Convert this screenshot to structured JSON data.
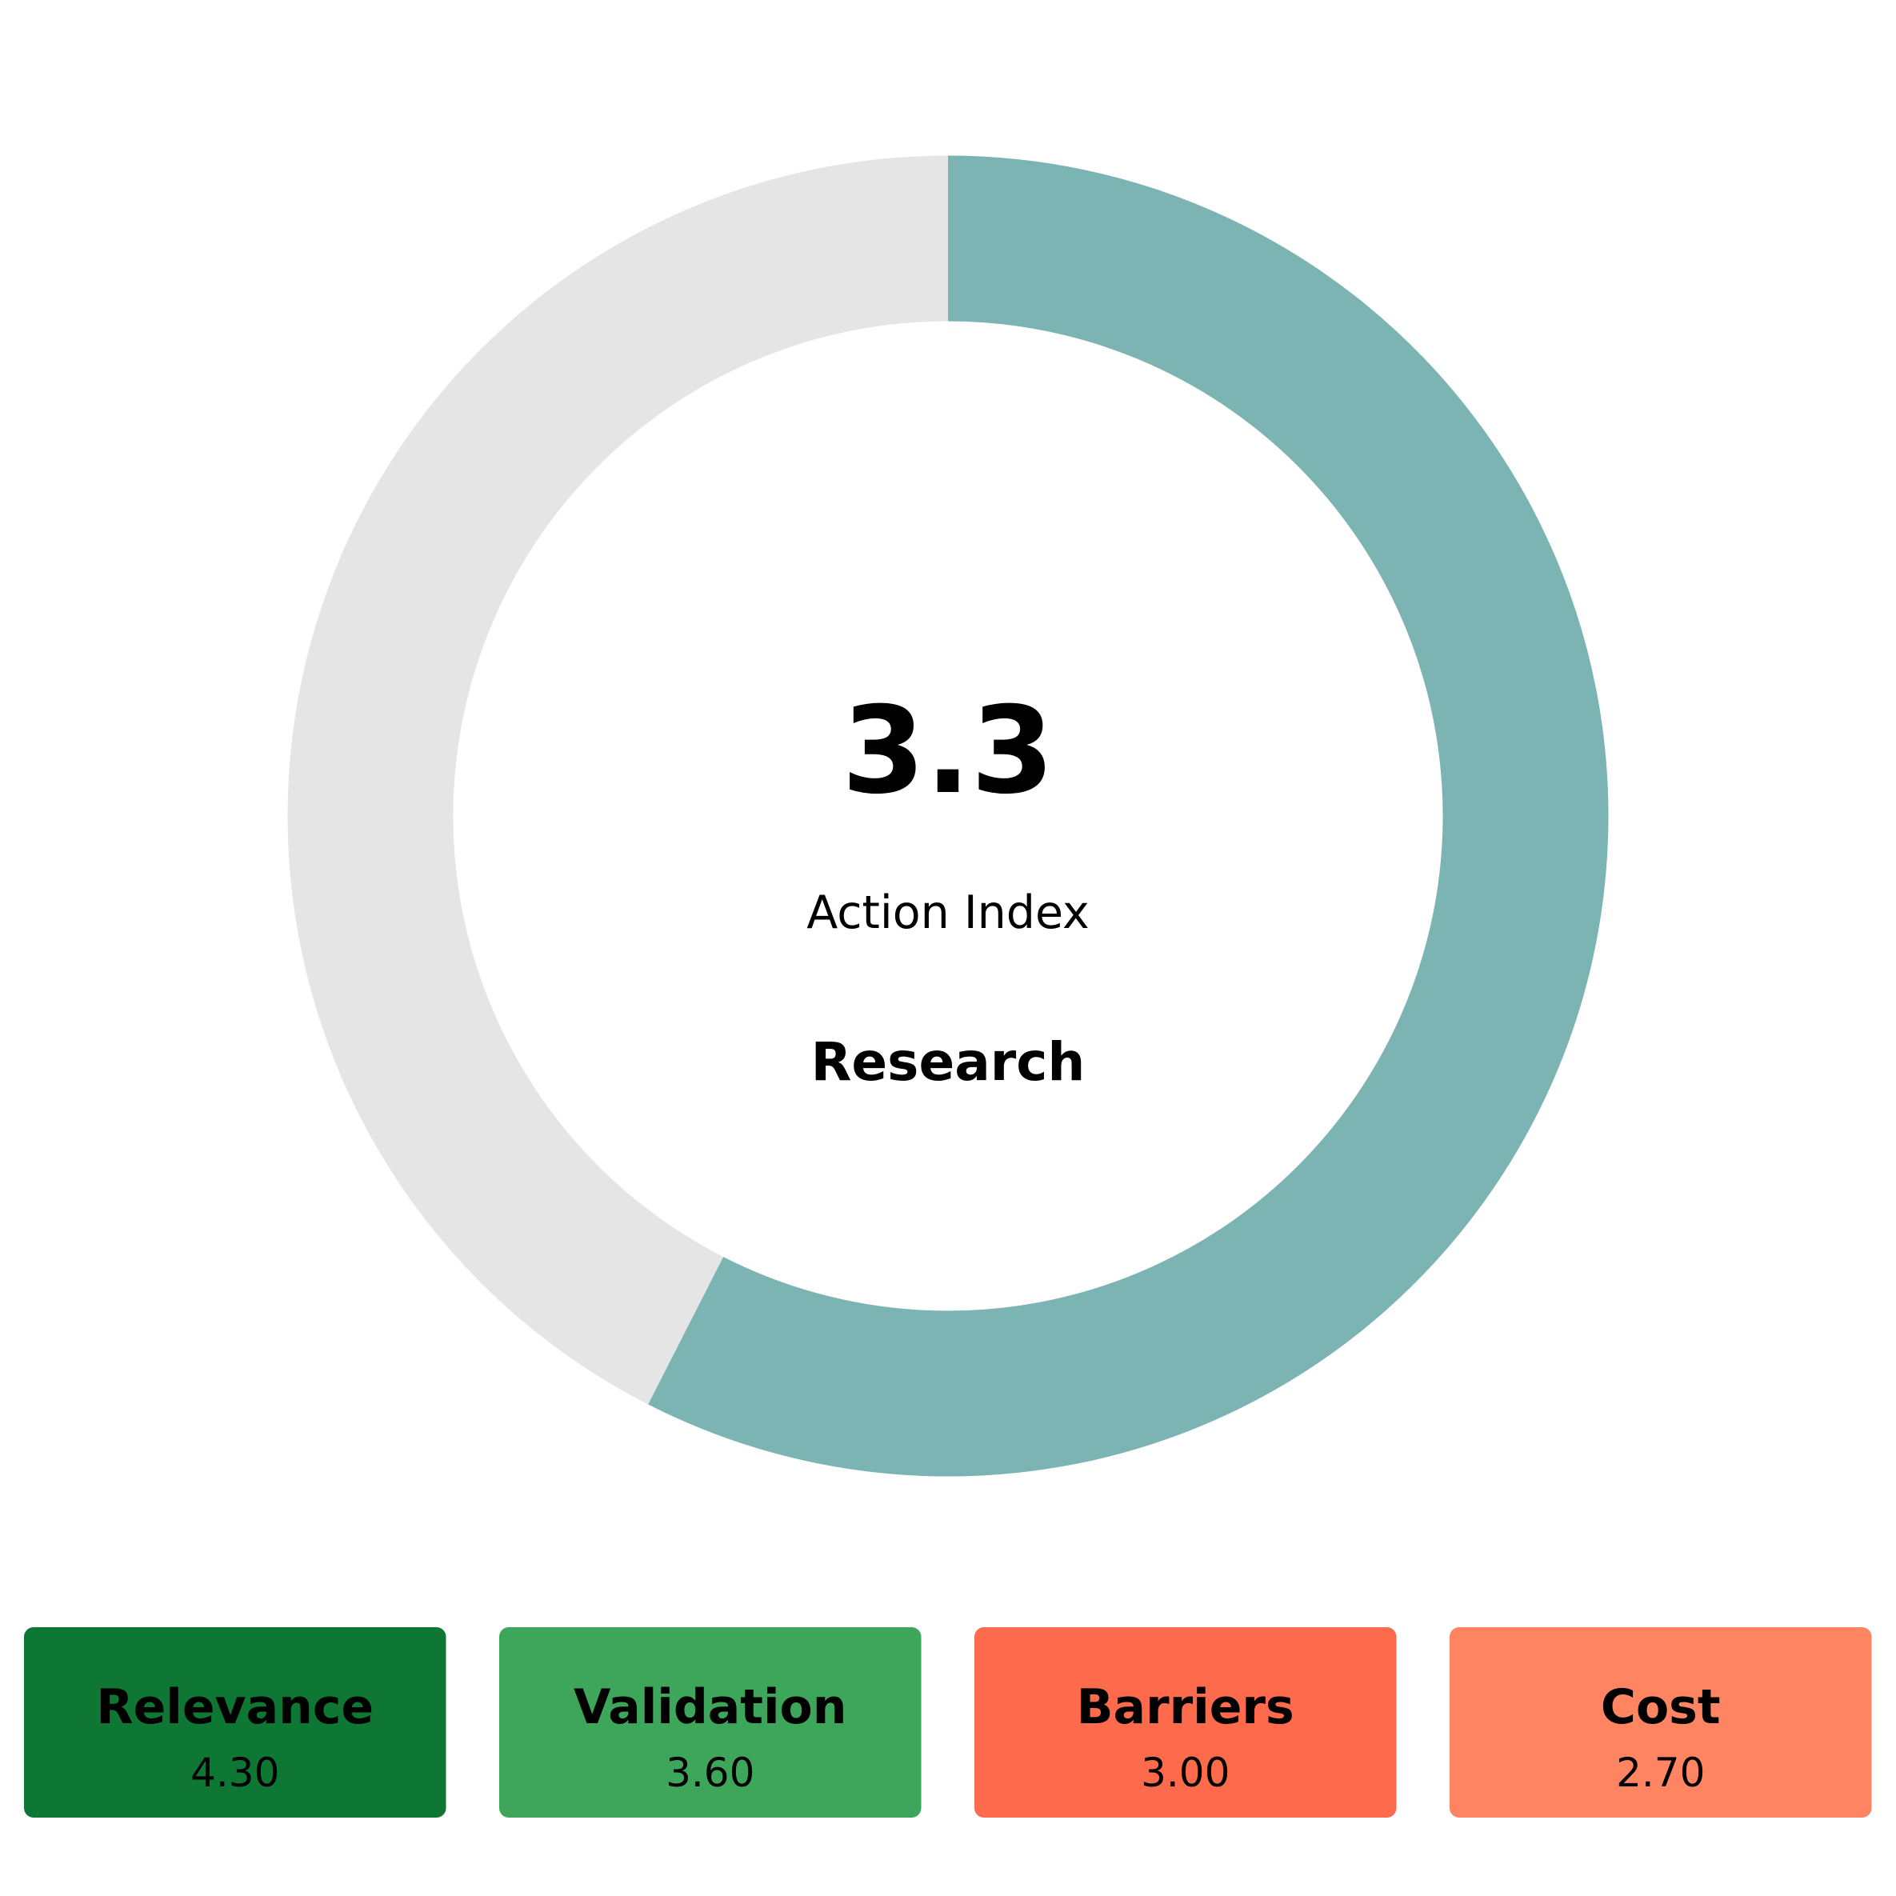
{
  "chart_data": {
    "type": "gauge",
    "value": 3.3,
    "lim": [
      1,
      5
    ],
    "label": "Action Index",
    "title": "Research",
    "color": "#7cb3b3",
    "track_color": "#e5e5e5",
    "categories": [
      "Relevance",
      "Validation",
      "Barriers",
      "Cost"
    ],
    "values": [
      4.3,
      3.6,
      3.0,
      2.7
    ],
    "value_labels": [
      "4.30",
      "3.60",
      "3.00",
      "2.70"
    ],
    "colors": [
      "#0e7734",
      "#3da65a",
      "#fe6a4c",
      "#fe8462"
    ]
  }
}
